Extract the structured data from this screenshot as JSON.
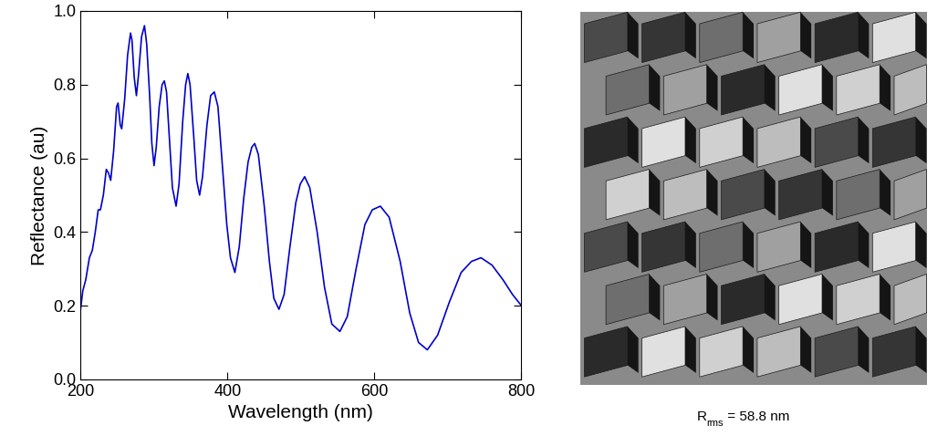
{
  "chart_data": {
    "type": "line",
    "x_label": "Wavelength (nm)",
    "y_label": "Reflectance (au)",
    "color": "#0000cc",
    "x": [
      200,
      203,
      207,
      212,
      216,
      220,
      224,
      227,
      231,
      235,
      238,
      241,
      245,
      249,
      251,
      254,
      256,
      260,
      264,
      268,
      270,
      273,
      276,
      279,
      283,
      287,
      290,
      294,
      297,
      300,
      303,
      307,
      311,
      314,
      317,
      321,
      325,
      330,
      334,
      339,
      343,
      346,
      349,
      354,
      358,
      362,
      366,
      372,
      377,
      382,
      387,
      393,
      399,
      404,
      410,
      416,
      422,
      428,
      433,
      437,
      442,
      450,
      457,
      463,
      470,
      477,
      485,
      493,
      499,
      505,
      512,
      522,
      532,
      542,
      553,
      563,
      575,
      587,
      597,
      608,
      620,
      635,
      648,
      660,
      672,
      686,
      702,
      718,
      732,
      745,
      760,
      775,
      788,
      800
    ],
    "values": [
      0.19,
      0.24,
      0.27,
      0.33,
      0.35,
      0.4,
      0.46,
      0.46,
      0.5,
      0.57,
      0.56,
      0.54,
      0.62,
      0.74,
      0.75,
      0.69,
      0.68,
      0.76,
      0.88,
      0.94,
      0.92,
      0.82,
      0.77,
      0.83,
      0.93,
      0.96,
      0.91,
      0.77,
      0.64,
      0.58,
      0.63,
      0.74,
      0.8,
      0.81,
      0.78,
      0.65,
      0.52,
      0.47,
      0.53,
      0.7,
      0.8,
      0.83,
      0.8,
      0.66,
      0.54,
      0.5,
      0.55,
      0.69,
      0.77,
      0.78,
      0.74,
      0.58,
      0.42,
      0.33,
      0.29,
      0.36,
      0.49,
      0.59,
      0.63,
      0.64,
      0.61,
      0.47,
      0.32,
      0.22,
      0.19,
      0.23,
      0.36,
      0.48,
      0.53,
      0.55,
      0.52,
      0.4,
      0.25,
      0.15,
      0.13,
      0.17,
      0.3,
      0.42,
      0.46,
      0.47,
      0.44,
      0.32,
      0.18,
      0.1,
      0.08,
      0.12,
      0.21,
      0.29,
      0.32,
      0.33,
      0.31,
      0.27,
      0.23,
      0.2
    ],
    "xlim": [
      200,
      800
    ],
    "xticks": [
      200,
      400,
      600,
      800
    ],
    "ylim": [
      0,
      1
    ],
    "yticks": [
      {
        "value": 0,
        "label": "0.0"
      },
      {
        "value": 0.2,
        "label": "0.2"
      },
      {
        "value": 0.4,
        "label": "0.4"
      },
      {
        "value": 0.6,
        "label": "0.6"
      },
      {
        "value": 0.8,
        "label": "0.8"
      },
      {
        "value": 1,
        "label": "1.0"
      }
    ],
    "grid": false
  },
  "image_panel": {
    "caption": {
      "symbol": "R",
      "subscript": "rms",
      "text": " = 58.8 nm"
    }
  }
}
